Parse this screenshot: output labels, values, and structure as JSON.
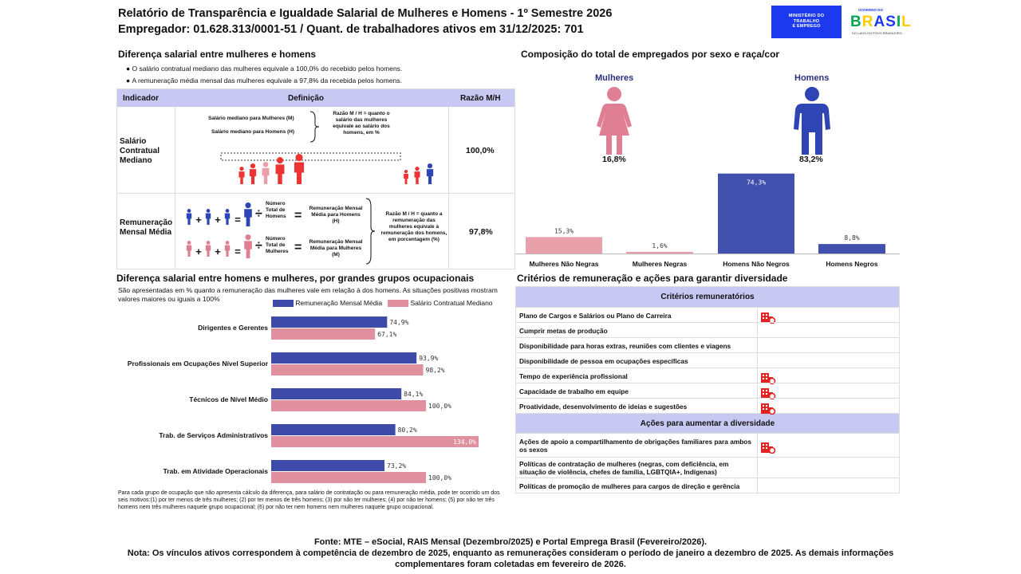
{
  "header": {
    "title": "Relatório de Transparência e Igualdade Salarial de Mulheres e Homens - 1º Semestre 2026",
    "employer": "Empregador: 01.628.313/0001-51 / Quant. de trabalhadores ativos em 31/12/2025: 701",
    "logo_mte": [
      "MINISTÉRIO DO",
      "TRABALHO",
      "E EMPREGO"
    ],
    "logo_gov_top": "GOVERNO DO",
    "logo_gov_name": "BRASIL",
    "logo_gov_bottom": "DO LADO DO POVO BRASILEIRO"
  },
  "salary_gap": {
    "title": "Diferença salarial entre mulheres e homens",
    "bullets": [
      "O salário contratual mediano das mulheres equivale a 100,0% do recebido pelos homens.",
      "A remuneração média mensal das mulheres equivale a 97,8% da recebida pelos homens."
    ],
    "table": {
      "headers": [
        "Indicador",
        "Definição",
        "Razão M/H"
      ],
      "row1": {
        "label": "Salário Contratual Mediano",
        "def_women": "Salário mediano para Mulheres (M)",
        "def_men": "Salário mediano para Homens (H)",
        "def_ratio": "Razão M / H = quanto o salário das mulheres equivale ao salário dos homens, em %",
        "value": "100,0%"
      },
      "row2": {
        "label": "Remuneração Mensal Média",
        "count_men": "Número Total de Homens",
        "avg_men": "Remuneração Mensal Média para Homens (H)",
        "count_women": "Número Total de Mulheres",
        "avg_women": "Remuneração Mensal Média para Mulheres (M)",
        "def_ratio": "Razão M / H = quanto a remuneração das mulheres equivale à remuneração dos homens, em porcentagem (%)",
        "value": "97,8%"
      }
    }
  },
  "composition": {
    "title": "Composição do total de empregados por sexo e raça/cor",
    "women_label": "Mulheres",
    "men_label": "Homens",
    "women_pct": "16,8%",
    "men_pct": "83,2%",
    "colors": {
      "women": "#e07f93",
      "men": "#2f45b3"
    }
  },
  "chart_data": [
    {
      "type": "bar",
      "title": "Composição do total de empregados por sexo e raça/cor",
      "categories": [
        "Mulheres Não Negras",
        "Mulheres Negras",
        "Homens Não Negros",
        "Homens Negros"
      ],
      "values": [
        15.3,
        1.6,
        74.3,
        8.8
      ],
      "value_labels": [
        "15,3%",
        "1,6%",
        "74,3%",
        "8,8%"
      ],
      "colors": [
        "#e8a0ab",
        "#e8a0ab",
        "#4150ad",
        "#4150ad"
      ],
      "ylim": [
        0,
        80
      ]
    },
    {
      "type": "bar",
      "orientation": "horizontal",
      "title": "Diferença salarial entre homens e mulheres, por grandes grupos ocupacionais",
      "categories": [
        "Dirigentes e Gerentes",
        "Profissionais em Ocupações Nível Superior",
        "Técnicos de Nível Médio",
        "Trab. de Serviços Administrativos",
        "Trab. em Atividade Operacionais"
      ],
      "series": [
        {
          "name": "Remuneração Mensal Média",
          "color": "#3f4ba8",
          "values": [
            74.9,
            93.9,
            84.1,
            80.2,
            73.2
          ],
          "labels": [
            "74,9%",
            "93,9%",
            "84,1%",
            "80,2%",
            "73,2%"
          ]
        },
        {
          "name": "Salário Contratual Mediano",
          "color": "#e0909f",
          "values": [
            67.1,
            98.2,
            100.0,
            134.0,
            100.0
          ],
          "labels": [
            "67,1%",
            "98,2%",
            "100,0%",
            "134,0%",
            "100,0%"
          ]
        }
      ],
      "xlim": [
        0,
        134
      ]
    }
  ],
  "occupational": {
    "title": "Diferença salarial entre homens e mulheres, por grandes grupos ocupacionais",
    "subtitle": "São apresentadas em % quanto a remuneração das mulheres vale em relação à dos homens. As situações positivas mostram valores maiores ou iguais a 100%",
    "note": "Para cada grupo de ocupação que não apresenta cálculo da diferença, para salário de contratação ou para remuneração média, pode ter ocorrido um dos seis motivos:(1) por ter menos de três mulheres; (2) por ter menos de três homens; (3) por não ter mulheres; (4) por não ter homens; (5) por não ter três homens nem três mulheres naquele grupo ocupacional; (6) por não ter nem homens nem mulheres naquele grupo ocupacional."
  },
  "criteria": {
    "title": "Critérios de remuneração e ações para garantir diversidade",
    "header1": "Critérios remuneratórios",
    "items1": [
      {
        "text": "Plano de Cargos e Salários ou Plano de Carreira",
        "checked": true
      },
      {
        "text": "Cumprir metas de produção",
        "checked": false
      },
      {
        "text": "Disponibilidade para horas extras, reuniões com clientes e viagens",
        "checked": false
      },
      {
        "text": "Disponibilidade de pessoa em ocupações específicas",
        "checked": false
      },
      {
        "text": "Tempo de experiência profissional",
        "checked": true
      },
      {
        "text": "Capacidade de trabalho em equipe",
        "checked": true
      },
      {
        "text": "Proatividade, desenvolvimento de ideias e sugestões",
        "checked": true
      }
    ],
    "header2": "Ações para aumentar a diversidade",
    "items2": [
      {
        "text": "Ações de apoio a compartilhamento de obrigações familiares para ambos os sexos",
        "checked": true
      },
      {
        "text": "Políticas de contratação de mulheres (negras, com deficiência, em situação de violência, chefes de família, LGBTQIA+, Indígenas)",
        "checked": false
      },
      {
        "text": "Políticas de promoção de mulheres para cargos de direção e gerência",
        "checked": false
      }
    ]
  },
  "footer": {
    "source": "Fonte: MTE – eSocial, RAIS Mensal (Dezembro/2025) e Portal Emprega Brasil (Fevereiro/2026).",
    "note": "Nota: Os vínculos ativos correspondem à competência de dezembro de 2025, enquanto as remunerações consideram o período de janeiro a dezembro de 2025. As demais informações complementares foram coletadas em fevereiro de 2026."
  }
}
